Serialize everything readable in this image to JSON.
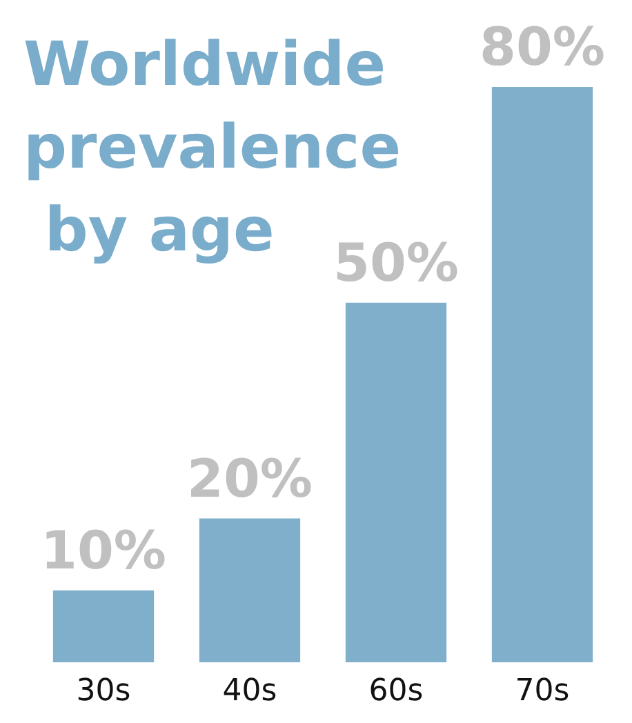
{
  "chart_data": {
    "type": "bar",
    "title": "Worldwide prevalence by age",
    "categories": [
      "30s",
      "40s",
      "60s",
      "70s"
    ],
    "values": [
      10,
      20,
      50,
      80
    ],
    "color": "#7fafcb",
    "value_labels": [
      "10%",
      "20%",
      "50%",
      "80%"
    ]
  }
}
